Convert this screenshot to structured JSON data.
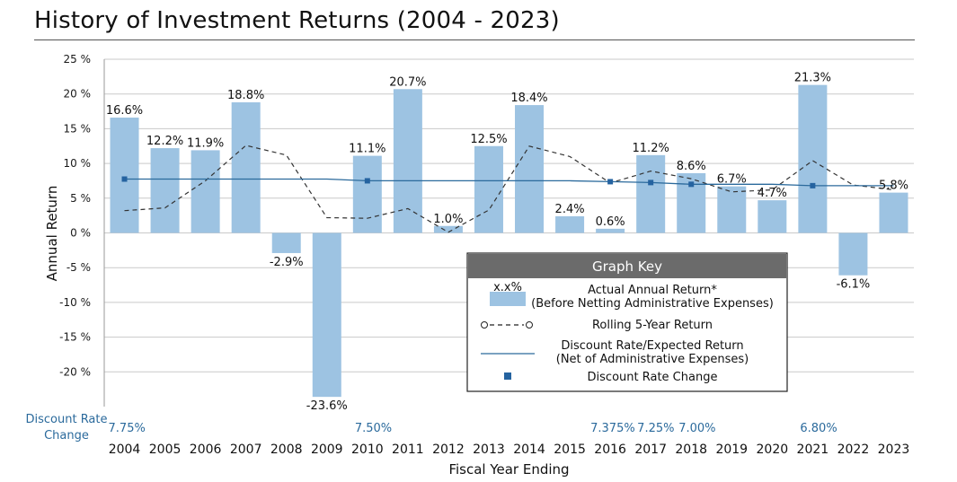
{
  "chart_data": {
    "type": "bar",
    "title": "History of Investment Returns (2004 - 2023)",
    "xlabel": "Fiscal Year Ending",
    "ylabel": "Annual Return",
    "ylim": [
      -25,
      25
    ],
    "yticks": [
      25,
      20,
      15,
      10,
      5,
      0,
      -5,
      -10,
      -15,
      -20
    ],
    "ytick_labels": [
      "25 %",
      "20 %",
      "15 %",
      "10 %",
      "5 %",
      "0 %",
      "-5 %",
      "-10 %",
      "-15 %",
      "-20 %"
    ],
    "categories": [
      "2004",
      "2005",
      "2006",
      "2007",
      "2008",
      "2009",
      "2010",
      "2011",
      "2012",
      "2013",
      "2014",
      "2015",
      "2016",
      "2017",
      "2018",
      "2019",
      "2020",
      "2021",
      "2022",
      "2023"
    ],
    "series": [
      {
        "name": "Actual Annual Return* (Before Netting Administrative Expenses)",
        "values": [
          16.6,
          12.2,
          11.9,
          18.8,
          -2.9,
          -23.6,
          11.1,
          20.7,
          1.0,
          12.5,
          18.4,
          2.4,
          0.6,
          11.2,
          8.6,
          6.7,
          4.7,
          21.3,
          -6.1,
          5.8
        ],
        "labels": [
          "16.6%",
          "12.2%",
          "11.9%",
          "18.8%",
          "-2.9%",
          "-23.6%",
          "11.1%",
          "20.7%",
          "1.0%",
          "12.5%",
          "18.4%",
          "2.4%",
          "0.6%",
          "11.2%",
          "8.6%",
          "6.7%",
          "4.7%",
          "21.3%",
          "-6.1%",
          "5.8%"
        ],
        "color": "#9dc3e2"
      },
      {
        "name": "Rolling 5-Year Return",
        "values": [
          3.2,
          3.6,
          7.5,
          12.6,
          11.2,
          2.2,
          2.1,
          3.5,
          0.1,
          3.3,
          12.5,
          11.0,
          7.2,
          8.9,
          7.8,
          5.9,
          6.2,
          10.4,
          6.9,
          6.2
        ],
        "color": "#333333"
      },
      {
        "name": "Discount Rate/Expected Return (Net of Administrative Expenses)",
        "values": [
          7.75,
          7.75,
          7.75,
          7.75,
          7.75,
          7.75,
          7.5,
          7.5,
          7.5,
          7.5,
          7.5,
          7.5,
          7.375,
          7.25,
          7.0,
          7.0,
          7.0,
          6.8,
          6.8,
          6.8
        ],
        "color": "#2b6a9c"
      }
    ],
    "discount_rate_changes": [
      {
        "year": "2004",
        "value": 7.75,
        "label": "7.75%"
      },
      {
        "year": "2010",
        "value": 7.5,
        "label": "7.50%"
      },
      {
        "year": "2016",
        "value": 7.375,
        "label": "7.375%"
      },
      {
        "year": "2017",
        "value": 7.25,
        "label": "7.25%"
      },
      {
        "year": "2018",
        "value": 7.0,
        "label": "7.00%"
      },
      {
        "year": "2021",
        "value": 6.8,
        "label": "6.80%"
      }
    ],
    "discount_rate_row_label": [
      "Discount Rate",
      "Change"
    ],
    "legend": {
      "title": "Graph Key",
      "sample_label": "x.x%",
      "items": [
        {
          "key": "bars",
          "lines": [
            "Actual Annual Return*",
            "(Before Netting Administrative Expenses)"
          ]
        },
        {
          "key": "rolling",
          "lines": [
            "Rolling 5-Year Return"
          ]
        },
        {
          "key": "discount",
          "lines": [
            "Discount Rate/Expected Return",
            "(Net of Administrative Expenses)"
          ]
        },
        {
          "key": "change",
          "lines": [
            "Discount Rate Change"
          ]
        }
      ]
    },
    "grid": true
  },
  "colors": {
    "bar": "#9dc3e2",
    "rate_line": "#2b6a9c",
    "rate_marker": "#2563a0",
    "legend_header": "#6b6b6b"
  }
}
